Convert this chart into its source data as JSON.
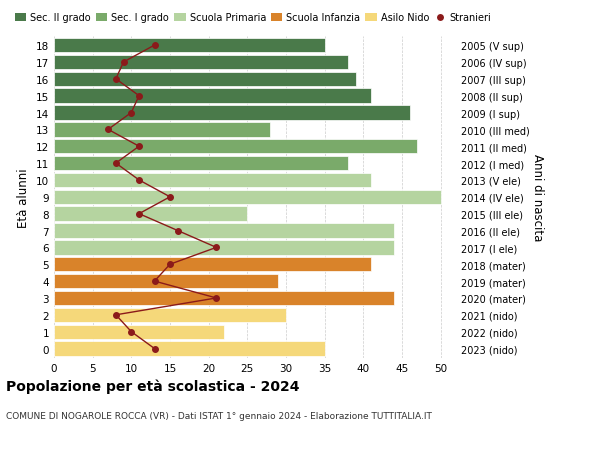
{
  "ages": [
    18,
    17,
    16,
    15,
    14,
    13,
    12,
    11,
    10,
    9,
    8,
    7,
    6,
    5,
    4,
    3,
    2,
    1,
    0
  ],
  "years": [
    "2005 (V sup)",
    "2006 (IV sup)",
    "2007 (III sup)",
    "2008 (II sup)",
    "2009 (I sup)",
    "2010 (III med)",
    "2011 (II med)",
    "2012 (I med)",
    "2013 (V ele)",
    "2014 (IV ele)",
    "2015 (III ele)",
    "2016 (II ele)",
    "2017 (I ele)",
    "2018 (mater)",
    "2019 (mater)",
    "2020 (mater)",
    "2021 (nido)",
    "2022 (nido)",
    "2023 (nido)"
  ],
  "bar_values": [
    35,
    38,
    39,
    41,
    46,
    28,
    47,
    38,
    41,
    50,
    25,
    44,
    44,
    41,
    29,
    44,
    30,
    22,
    35
  ],
  "bar_colors": [
    "#4a7a4a",
    "#4a7a4a",
    "#4a7a4a",
    "#4a7a4a",
    "#4a7a4a",
    "#7aaa6a",
    "#7aaa6a",
    "#7aaa6a",
    "#b5d4a0",
    "#b5d4a0",
    "#b5d4a0",
    "#b5d4a0",
    "#b5d4a0",
    "#d9832a",
    "#d9832a",
    "#d9832a",
    "#f5d87a",
    "#f5d87a",
    "#f5d87a"
  ],
  "stranieri_values": [
    13,
    9,
    8,
    11,
    10,
    7,
    11,
    8,
    11,
    15,
    11,
    16,
    21,
    15,
    13,
    21,
    8,
    10,
    13
  ],
  "stranieri_color": "#8b1a1a",
  "legend_labels": [
    "Sec. II grado",
    "Sec. I grado",
    "Scuola Primaria",
    "Scuola Infanzia",
    "Asilo Nido",
    "Stranieri"
  ],
  "legend_colors": [
    "#4a7a4a",
    "#7aaa6a",
    "#b5d4a0",
    "#d9832a",
    "#f5d87a",
    "#8b1a1a"
  ],
  "ylabel": "Età alunni",
  "ylabel2": "Anni di nascita",
  "title": "Popolazione per età scolastica - 2024",
  "subtitle": "COMUNE DI NOGAROLE ROCCA (VR) - Dati ISTAT 1° gennaio 2024 - Elaborazione TUTTITALIA.IT",
  "xlim": [
    0,
    52
  ],
  "grid_color": "#cccccc"
}
